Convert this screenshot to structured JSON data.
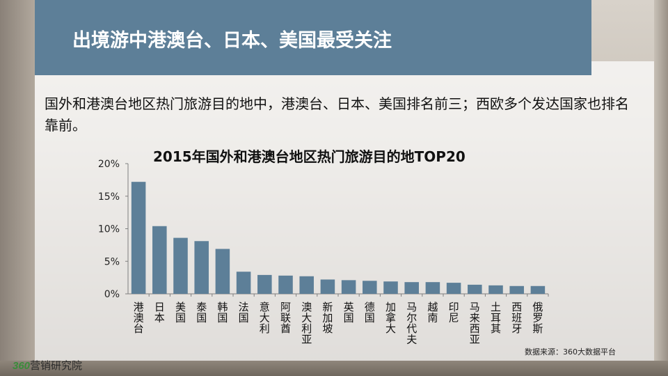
{
  "slide": {
    "title": "出境游中港澳台、日本、美国最受关注",
    "description": "国外和港澳台地区热门旅游目的地中，港澳台、日本、美国排名前三；西欧多个发达国家也排名靠前。",
    "source": "数据来源：360大数据平台",
    "logo_number": "360",
    "logo_text": "营销研究院",
    "title_bar_color": "#5d7f98"
  },
  "chart_data": {
    "type": "bar",
    "title": "2015年国外和港澳台地区热门旅游目的地TOP20",
    "xlabel": "",
    "ylabel": "",
    "ylim": [
      0,
      20
    ],
    "yticks": [
      "0%",
      "5%",
      "10%",
      "15%",
      "20%"
    ],
    "ytick_values": [
      0,
      5,
      10,
      15,
      20
    ],
    "grid": false,
    "bar_color": "#5d7f98",
    "categories": [
      "港澳台",
      "日本",
      "美国",
      "泰国",
      "韩国",
      "法国",
      "意大利",
      "阿联酋",
      "澳大利亚",
      "新加坡",
      "英国",
      "德国",
      "加拿大",
      "马尔代夫",
      "越南",
      "印尼",
      "马来西亚",
      "土耳其",
      "西班牙",
      "俄罗斯"
    ],
    "values": [
      17.2,
      10.4,
      8.6,
      8.1,
      6.9,
      3.4,
      2.9,
      2.8,
      2.7,
      2.2,
      2.1,
      2.0,
      1.9,
      1.8,
      1.8,
      1.7,
      1.4,
      1.3,
      1.2,
      1.2
    ]
  }
}
